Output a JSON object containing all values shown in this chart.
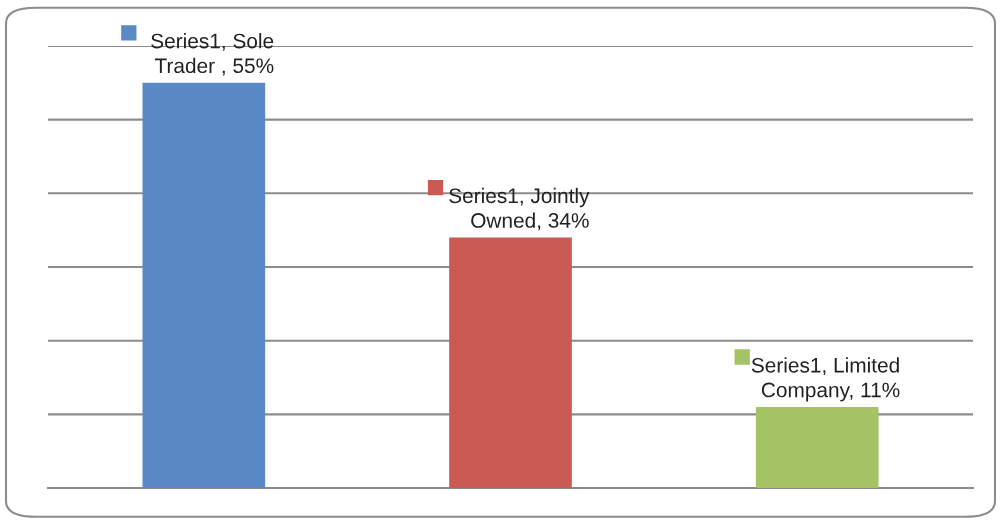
{
  "chart_data": {
    "type": "bar",
    "categories": [
      null,
      null,
      null
    ],
    "values": [
      55,
      34,
      11
    ],
    "colors": [
      "#5a8ac6",
      "#cb5a55",
      "#a3c365"
    ],
    "value_labels": [
      "Series1, Sole Trader , 55%",
      "Series1, Jointly Owned, 34%",
      "Series1, Limited Company, 11%"
    ],
    "ylim": [
      0,
      60
    ],
    "grid": "y",
    "tick_labels": false
  }
}
